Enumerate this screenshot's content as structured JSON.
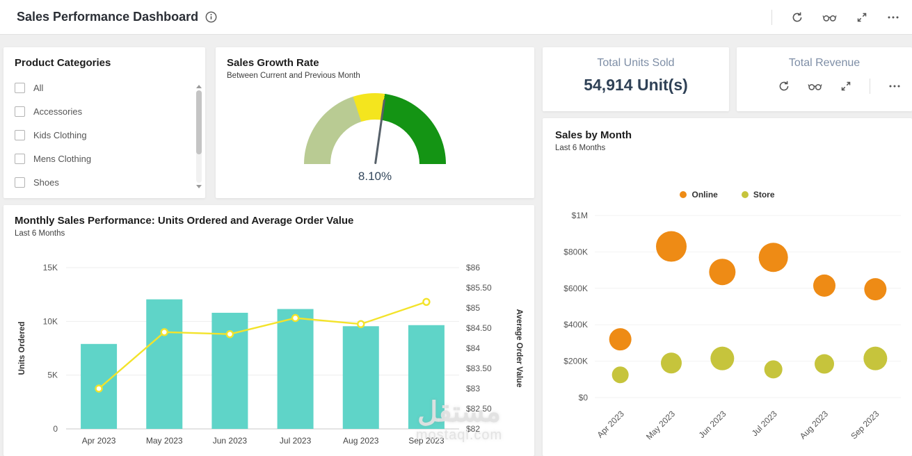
{
  "header": {
    "title": "Sales Performance Dashboard",
    "actions": [
      "refresh",
      "preview",
      "maximize",
      "more-options"
    ]
  },
  "cards": {
    "product_categories": {
      "title": "Product Categories",
      "items": [
        "All",
        "Accessories",
        "Kids Clothing",
        "Mens Clothing",
        "Shoes"
      ]
    },
    "sales_growth": {
      "title": "Sales Growth Rate",
      "subtitle": "Between Current and Previous Month",
      "value": "8.10%"
    },
    "total_units": {
      "title": "Total Units Sold",
      "value": "54,914 Unit(s)"
    },
    "total_revenue": {
      "title": "Total Revenue",
      "actions": [
        "refresh",
        "preview",
        "maximize",
        "more-options"
      ]
    },
    "monthly_sales": {
      "title": "Monthly Sales Performance: Units Ordered and Average Order Value",
      "subtitle": "Last 6 Months"
    },
    "sales_by_month": {
      "title": "Sales by Month",
      "subtitle": "Last 6 Months",
      "legend": [
        {
          "label": "Online",
          "color": "#ee8b15"
        },
        {
          "label": "Store",
          "color": "#c6c43c"
        }
      ]
    }
  },
  "chart_data": [
    {
      "type": "gauge",
      "title": "Sales Growth Rate",
      "subtitle": "Between Current and Previous Month",
      "value": 8.1,
      "value_label": "8.10%",
      "segments": [
        {
          "color": "#b9cb93",
          "start": 0,
          "end": 72
        },
        {
          "color": "#f4e51e",
          "start": 72,
          "end": 98
        },
        {
          "color": "#149414",
          "start": 98,
          "end": 180
        }
      ],
      "needle_deg": 8
    },
    {
      "type": "combo",
      "title": "Monthly Sales Performance: Units Ordered and Average Order Value",
      "subtitle": "Last 6 Months",
      "categories": [
        "Apr 2023",
        "May 2023",
        "Jun 2023",
        "Jul 2023",
        "Aug 2023",
        "Sep 2023"
      ],
      "series": [
        {
          "name": "Units Ordered",
          "type": "bar",
          "axis": "left",
          "color": "#5fd4c8",
          "values": [
            7900,
            12050,
            10800,
            11150,
            9550,
            9650
          ]
        },
        {
          "name": "Average Order Value",
          "type": "line",
          "axis": "right",
          "color": "#f3e32a",
          "values": [
            83,
            84.4,
            84.35,
            84.75,
            84.6,
            85.15
          ]
        }
      ],
      "left_axis": {
        "label": "Units Ordered",
        "min": 0,
        "max": 15000,
        "ticks": [
          "0",
          "5K",
          "10K",
          "15K"
        ]
      },
      "right_axis": {
        "label": "Average Order Value",
        "min": 82,
        "max": 86,
        "tick_step": 0.5,
        "ticks": [
          "$82",
          "$82.50",
          "$83",
          "$83.50",
          "$84",
          "$84.50",
          "$85",
          "$85.50",
          "$86"
        ]
      }
    },
    {
      "type": "bubble",
      "title": "Sales by Month",
      "subtitle": "Last 6 Months",
      "categories": [
        "Apr 2023",
        "May 2023",
        "Jun 2023",
        "Jul 2023",
        "Aug 2023",
        "Sep 2023"
      ],
      "y_axis": {
        "min": 0,
        "max": 1000000,
        "ticks": [
          "$0",
          "$200K",
          "$400K",
          "$600K",
          "$800K",
          "$1M"
        ]
      },
      "series": [
        {
          "name": "Online",
          "color": "#ee8b15",
          "points": [
            {
              "y": 320000,
              "r": 16
            },
            {
              "y": 830000,
              "r": 22
            },
            {
              "y": 690000,
              "r": 19
            },
            {
              "y": 770000,
              "r": 21
            },
            {
              "y": 615000,
              "r": 16
            },
            {
              "y": 595000,
              "r": 16
            }
          ]
        },
        {
          "name": "Store",
          "color": "#c6c43c",
          "points": [
            {
              "y": 125000,
              "r": 12
            },
            {
              "y": 190000,
              "r": 15
            },
            {
              "y": 215000,
              "r": 17
            },
            {
              "y": 155000,
              "r": 13
            },
            {
              "y": 185000,
              "r": 14
            },
            {
              "y": 215000,
              "r": 17
            }
          ]
        }
      ]
    }
  ],
  "watermark": {
    "arabic": "مستقل",
    "latin": "mostaql.com"
  }
}
